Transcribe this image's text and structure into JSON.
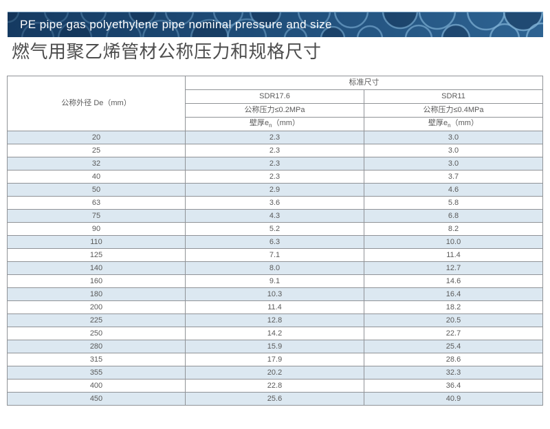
{
  "banner": {
    "title": "PE pipe gas polyethylene pipe nominal pressure and size"
  },
  "page_title": "燃气用聚乙烯管材公称压力和规格尺寸",
  "table": {
    "header": {
      "outer_diameter": "公称外径 De（mm）",
      "standard_size": "标准尺寸",
      "sdr_columns": [
        "SDR17.6",
        "SDR11"
      ],
      "pressure_labels": [
        "公称压力≤0.2MPa",
        "公称压力≤0.4MPa"
      ],
      "wall_thickness": {
        "prefix": "壁厚e",
        "sub": "n",
        "suffix": "（mm）"
      }
    },
    "rows": [
      {
        "de": "20",
        "sdr176": "2.3",
        "sdr11": "3.0"
      },
      {
        "de": "25",
        "sdr176": "2.3",
        "sdr11": "3.0"
      },
      {
        "de": "32",
        "sdr176": "2.3",
        "sdr11": "3.0"
      },
      {
        "de": "40",
        "sdr176": "2.3",
        "sdr11": "3.7"
      },
      {
        "de": "50",
        "sdr176": "2.9",
        "sdr11": "4.6"
      },
      {
        "de": "63",
        "sdr176": "3.6",
        "sdr11": "5.8"
      },
      {
        "de": "75",
        "sdr176": "4.3",
        "sdr11": "6.8"
      },
      {
        "de": "90",
        "sdr176": "5.2",
        "sdr11": "8.2"
      },
      {
        "de": "110",
        "sdr176": "6.3",
        "sdr11": "10.0"
      },
      {
        "de": "125",
        "sdr176": "7.1",
        "sdr11": "11.4"
      },
      {
        "de": "140",
        "sdr176": "8.0",
        "sdr11": "12.7"
      },
      {
        "de": "160",
        "sdr176": "9.1",
        "sdr11": "14.6"
      },
      {
        "de": "180",
        "sdr176": "10.3",
        "sdr11": "16.4"
      },
      {
        "de": "200",
        "sdr176": "11.4",
        "sdr11": "18.2"
      },
      {
        "de": "225",
        "sdr176": "12.8",
        "sdr11": "20.5"
      },
      {
        "de": "250",
        "sdr176": "14.2",
        "sdr11": "22.7"
      },
      {
        "de": "280",
        "sdr176": "15.9",
        "sdr11": "25.4"
      },
      {
        "de": "315",
        "sdr176": "17.9",
        "sdr11": "28.6"
      },
      {
        "de": "355",
        "sdr176": "20.2",
        "sdr11": "32.3"
      },
      {
        "de": "400",
        "sdr176": "22.8",
        "sdr11": "36.4"
      },
      {
        "de": "450",
        "sdr176": "25.6",
        "sdr11": "40.9"
      }
    ]
  },
  "colors": {
    "banner_dark": "#153a61",
    "banner_light": "#2e6392",
    "stripe": "#dce8f1",
    "border": "#8f9296",
    "text": "#595959",
    "title_text": "#4d4d4d"
  }
}
